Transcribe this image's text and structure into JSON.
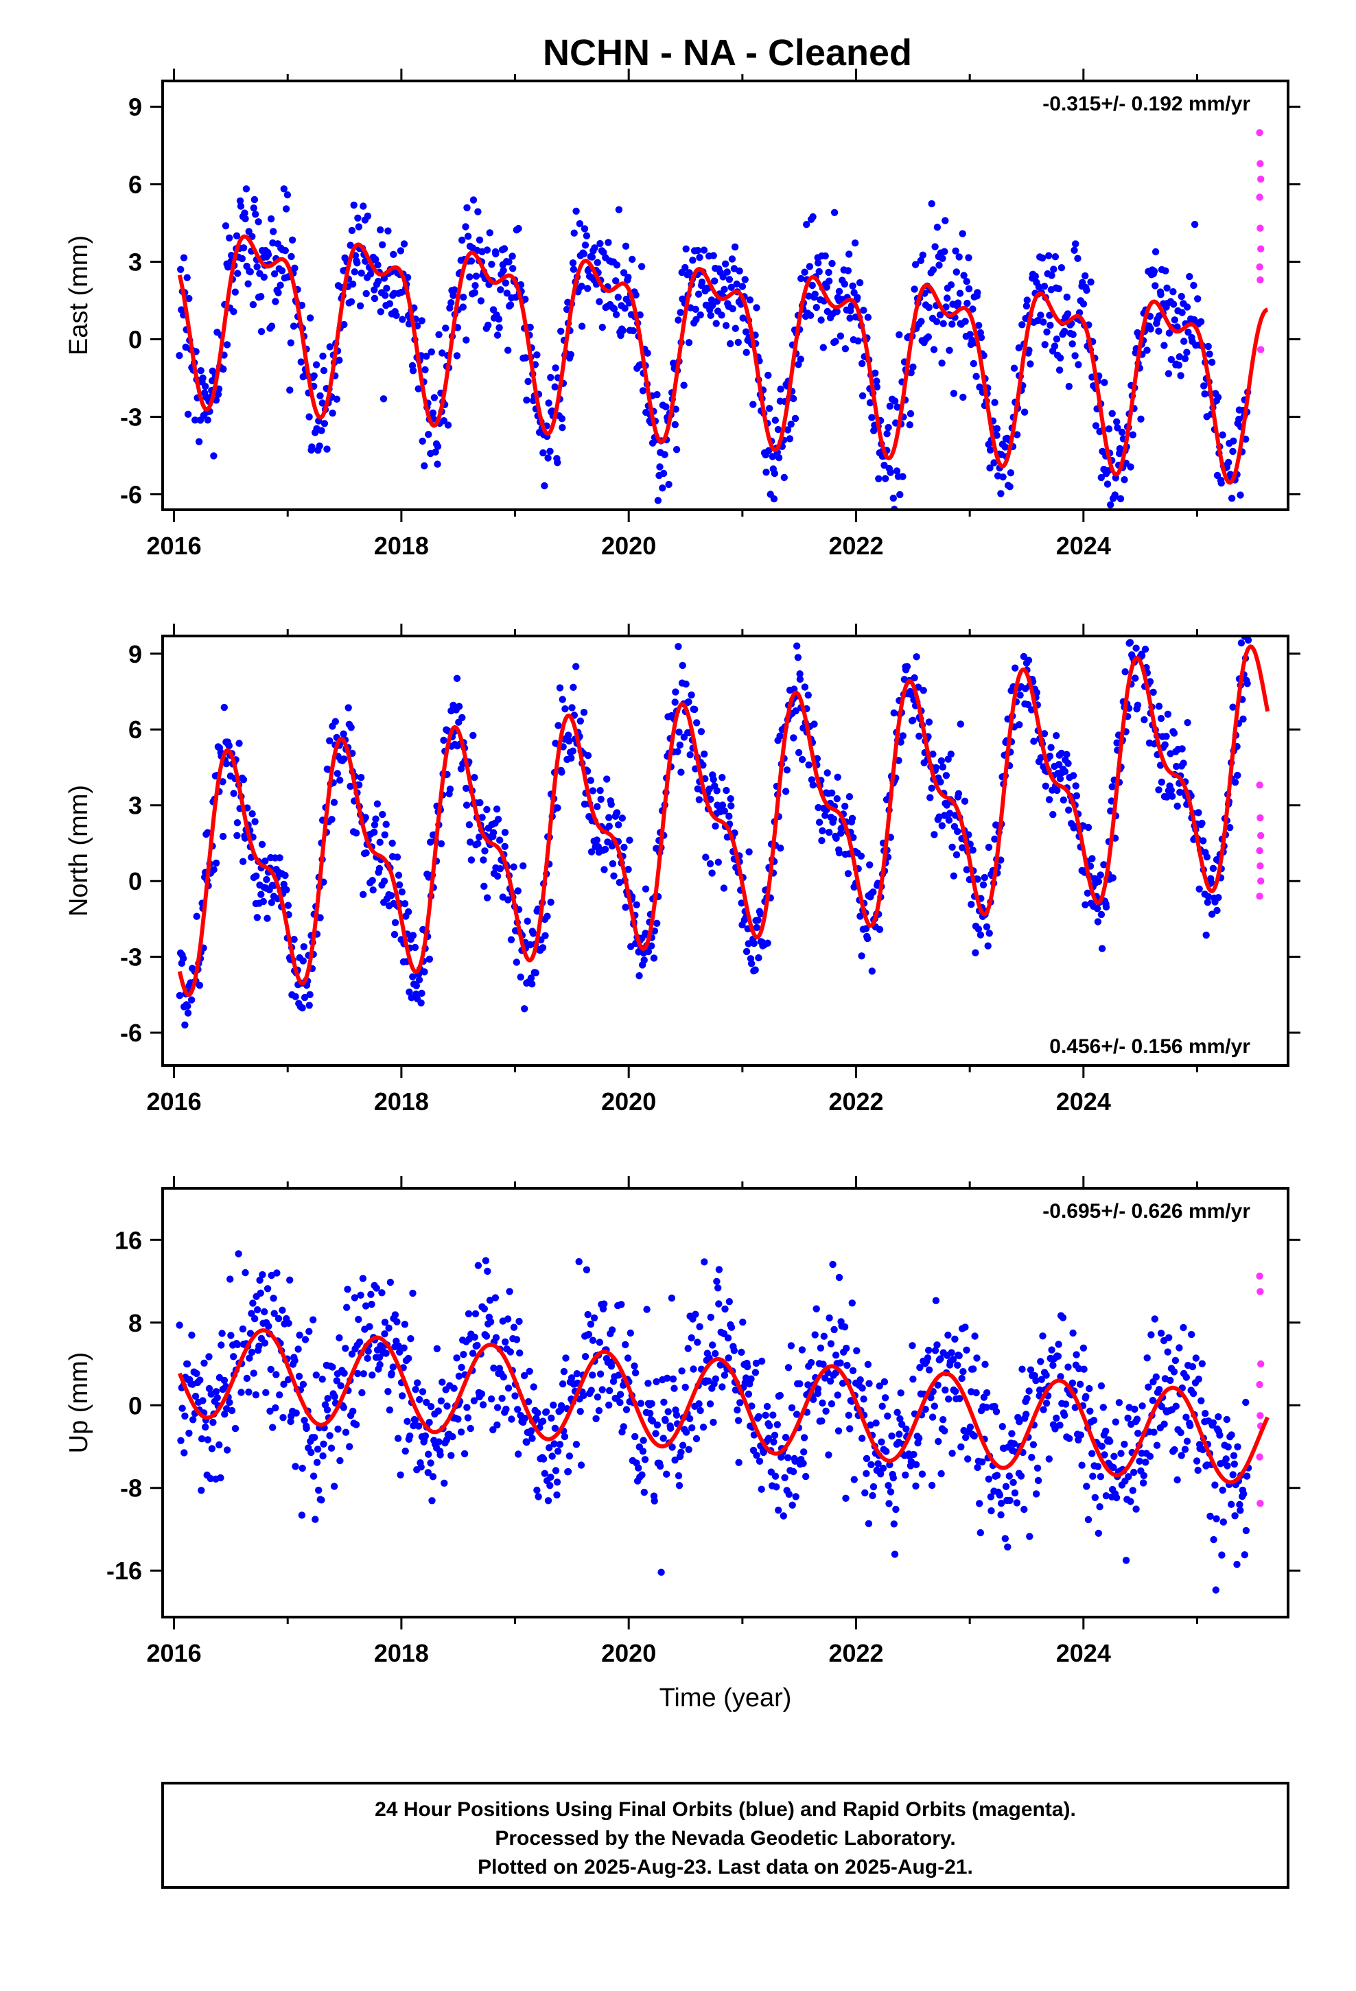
{
  "title": "NCHN  - NA - Cleaned",
  "chart_data": [
    {
      "type": "scatter",
      "ylabel": "East (mm)",
      "xlabel": "",
      "xlim": [
        2015.9,
        2025.8
      ],
      "ylim": [
        -6.6,
        10
      ],
      "x_ticks": [
        "2016",
        "2018",
        "2020",
        "2022",
        "2024"
      ],
      "y_ticks": [
        "9",
        "6",
        "3",
        "0",
        "-3",
        "-6"
      ],
      "y_tick_values": [
        9,
        6,
        3,
        0,
        -3,
        -6
      ],
      "rate_text": "-0.315+/- 0.192 mm/yr",
      "rate_position": "top-right",
      "fit": {
        "rate": -0.315,
        "offset": 1.65,
        "amp1": 2.9,
        "phase1": 0.52,
        "amp2": 1.4,
        "phase2": 0.42
      },
      "noise_sd": 1.15,
      "final_orbits_color": "#0000ff",
      "rapid_orbits_color": "#ff33ff",
      "fit_color": "#ff0000",
      "rapid_values": [
        8.0,
        6.8,
        6.2,
        5.5,
        4.3,
        3.5,
        2.8,
        2.3,
        -0.4
      ]
    },
    {
      "type": "scatter",
      "ylabel": "North (mm)",
      "xlabel": "",
      "xlim": [
        2015.9,
        2025.8
      ],
      "ylim": [
        -7.3,
        9.7
      ],
      "x_ticks": [
        "2016",
        "2018",
        "2020",
        "2022",
        "2024"
      ],
      "y_ticks": [
        "9",
        "6",
        "3",
        "0",
        "-3",
        "-6"
      ],
      "y_tick_values": [
        9,
        6,
        3,
        0,
        -3,
        -6
      ],
      "rate_text": "0.456+/- 0.156 mm/yr",
      "rate_position": "bottom-right",
      "fit": {
        "rate": 0.456,
        "offset": 0.2,
        "amp1": 3.8,
        "phase1": 0.3,
        "amp2": 1.7,
        "phase2": 0.3
      },
      "noise_sd": 1.0,
      "final_orbits_color": "#0000ff",
      "rapid_orbits_color": "#ff33ff",
      "fit_color": "#ff0000",
      "rapid_values": [
        3.8,
        2.5,
        1.8,
        1.2,
        0.6,
        0.0,
        -0.6
      ]
    },
    {
      "type": "scatter",
      "ylabel": "Up (mm)",
      "xlabel": "Time (year)",
      "xlim": [
        2015.9,
        2025.8
      ],
      "ylim": [
        -20.5,
        21
      ],
      "x_ticks": [
        "2016",
        "2018",
        "2020",
        "2022",
        "2024"
      ],
      "y_ticks": [
        "16",
        "8",
        "0",
        "-8",
        "-16"
      ],
      "y_tick_values": [
        16,
        8,
        0,
        -8,
        -16
      ],
      "rate_text": "-0.695+/- 0.626 mm/yr",
      "rate_position": "top-right",
      "fit": {
        "rate": -0.695,
        "offset": 3.4,
        "amp1": 4.4,
        "phase1": 0.54,
        "amp2": 0,
        "phase2": 0
      },
      "noise_sd": 3.8,
      "final_orbits_color": "#0000ff",
      "rapid_orbits_color": "#ff33ff",
      "fit_color": "#ff0000",
      "rapid_values": [
        12.5,
        11.0,
        4.0,
        2.0,
        -1.0,
        -2.0,
        -5.0,
        -9.5
      ]
    }
  ],
  "caption": {
    "line1": "24 Hour Positions Using Final Orbits (blue) and Rapid Orbits (magenta).",
    "line2": "Processed by the Nevada Geodetic Laboratory.",
    "line3": "Plotted on 2025-Aug-23. Last data on 2025-Aug-21."
  }
}
